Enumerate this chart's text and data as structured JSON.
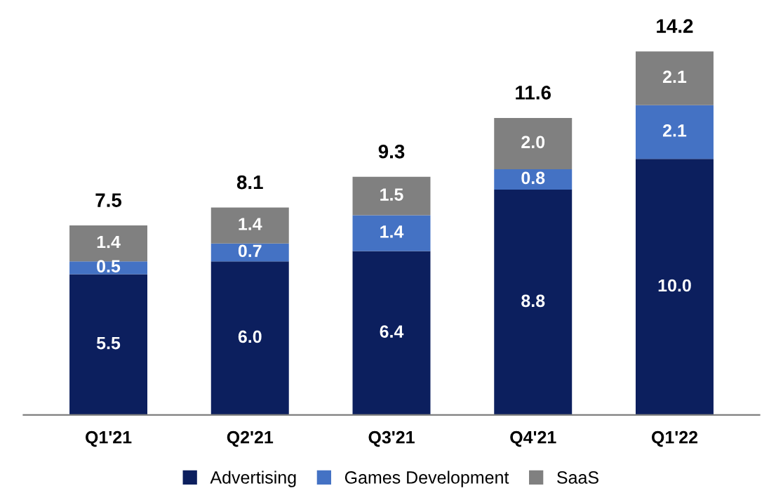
{
  "chart_data": {
    "type": "bar",
    "stacked": true,
    "categories": [
      "Q1'21",
      "Q2'21",
      "Q3'21",
      "Q4'21",
      "Q1'22"
    ],
    "series": [
      {
        "name": "Advertising",
        "color": "#0c1f5e",
        "values": [
          5.5,
          6.0,
          6.4,
          8.8,
          10.0
        ],
        "value_labels": [
          "5.5",
          "6.0",
          "6.4",
          "8.8",
          "10.0"
        ]
      },
      {
        "name": "Games Development",
        "color": "#4472c4",
        "values": [
          0.5,
          0.7,
          1.4,
          0.8,
          2.1
        ],
        "value_labels": [
          "0.5",
          "0.7",
          "1.4",
          "0.8",
          "2.1"
        ]
      },
      {
        "name": "SaaS",
        "color": "#808080",
        "values": [
          1.4,
          1.4,
          1.5,
          2.0,
          2.1
        ],
        "value_labels": [
          "1.4",
          "1.4",
          "1.5",
          "2.0",
          "2.1"
        ]
      }
    ],
    "totals": [
      "7.5",
      "8.1",
      "9.3",
      "11.6",
      "14.2"
    ],
    "legend": "bottom",
    "tick_labels": "x"
  }
}
